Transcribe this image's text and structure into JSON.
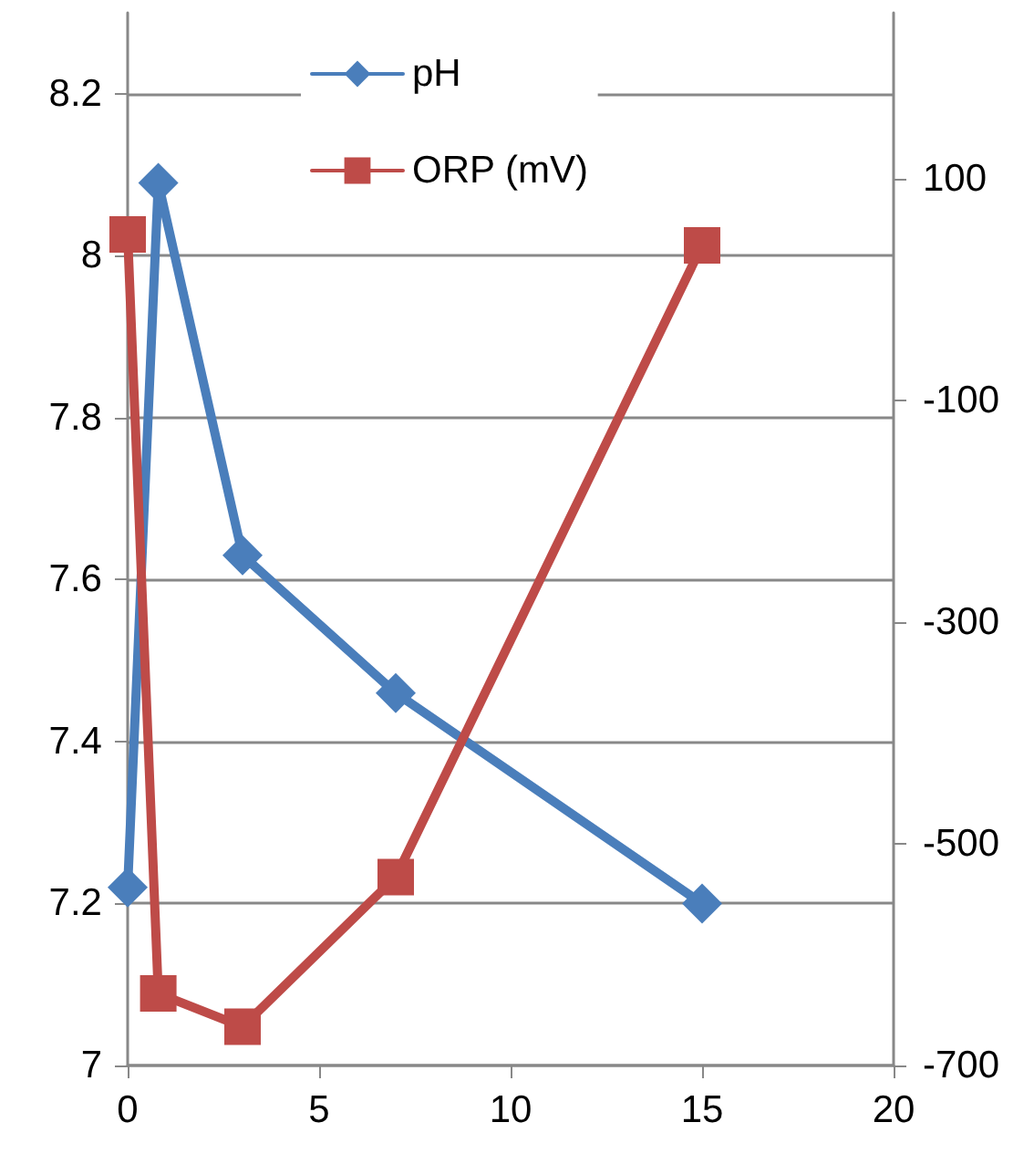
{
  "chart_data": {
    "type": "line",
    "x": [
      0,
      0.8,
      3,
      7,
      15
    ],
    "series": [
      {
        "name": "pH",
        "color": "#4a7ebb",
        "marker": "diamond",
        "values": [
          7.22,
          8.09,
          7.63,
          7.46,
          7.2
        ]
      },
      {
        "name": "ORP (mV)",
        "color": "#be4b48",
        "marker": "square",
        "axis": "y2",
        "values": [
          50,
          -635,
          -665,
          -530,
          40
        ]
      }
    ],
    "xlim": [
      0,
      20
    ],
    "xticks": [
      0,
      5,
      10,
      15,
      20
    ],
    "ylim": [
      7,
      8.3
    ],
    "yticks": [
      7,
      7.2,
      7.4,
      7.6,
      7.8,
      8,
      8.2
    ],
    "y2lim": [
      -700,
      250
    ],
    "y2ticks": [
      -700,
      -500,
      -300,
      -100,
      100
    ],
    "grid": "y",
    "legend": "top",
    "line_style": "solid"
  }
}
